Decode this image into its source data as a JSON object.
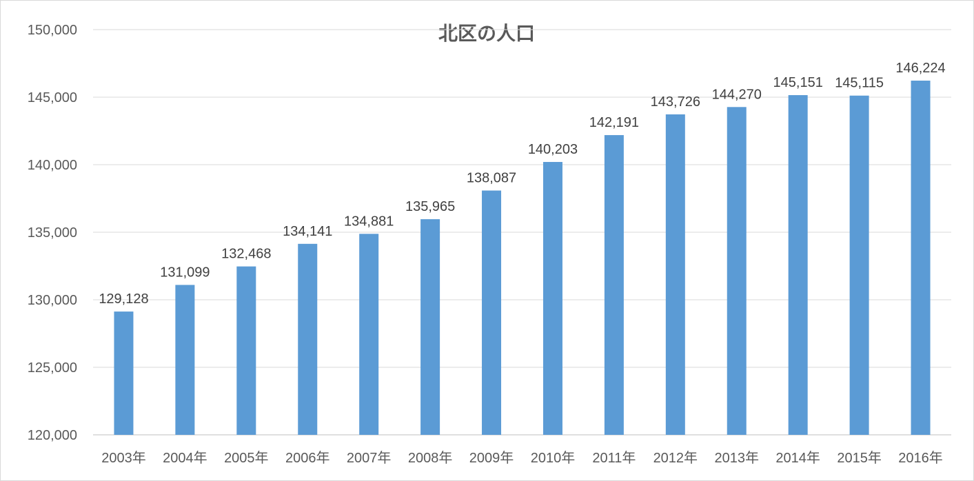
{
  "chart_data": {
    "type": "bar",
    "title": "北区の人口",
    "xlabel": "",
    "ylabel": "",
    "categories": [
      "2003年",
      "2004年",
      "2005年",
      "2006年",
      "2007年",
      "2008年",
      "2009年",
      "2010年",
      "2011年",
      "2012年",
      "2013年",
      "2014年",
      "2015年",
      "2016年"
    ],
    "values": [
      129128,
      131099,
      132468,
      134141,
      134881,
      135965,
      138087,
      140203,
      142191,
      143726,
      144270,
      145151,
      145115,
      146224
    ],
    "data_labels": [
      "129,128",
      "131,099",
      "132,468",
      "134,141",
      "134,881",
      "135,965",
      "138,087",
      "140,203",
      "142,191",
      "143,726",
      "144,270",
      "145,151",
      "145,115",
      "146,224"
    ],
    "ylim": [
      120000,
      150000
    ],
    "yticks": [
      120000,
      125000,
      130000,
      135000,
      140000,
      145000,
      150000
    ],
    "ytick_labels": [
      "120,000",
      "125,000",
      "130,000",
      "135,000",
      "140,000",
      "145,000",
      "150,000"
    ],
    "grid": true,
    "legend": "none",
    "bar_color": "#5b9bd5"
  }
}
